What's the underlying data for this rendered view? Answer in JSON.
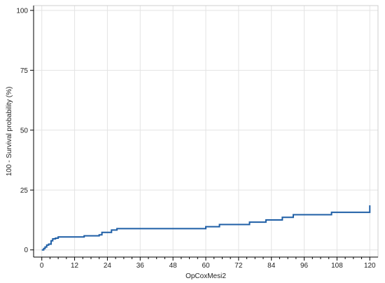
{
  "chart_data": {
    "type": "line",
    "step": true,
    "xlabel": "OpCoxMesi2",
    "ylabel": "100 - Survival probability (%)",
    "xlim": [
      -3,
      123
    ],
    "ylim": [
      -3,
      102
    ],
    "x_ticks": [
      0,
      12,
      24,
      36,
      48,
      60,
      72,
      84,
      96,
      108,
      120
    ],
    "y_ticks": [
      0,
      25,
      50,
      75,
      100
    ],
    "grid": true,
    "line_color": "#1f5fa6",
    "series": [
      {
        "x": [
          0,
          0.7,
          1.2,
          1.8,
          2.5,
          3.4,
          4.0,
          5.0,
          6.0,
          15.5,
          21.0,
          22.0,
          25.5,
          27.5,
          60.0,
          65.0,
          76.0,
          82.0,
          88.0,
          92.0,
          106.0,
          120.0,
          120.0
        ],
        "y": [
          0,
          0.6,
          1.2,
          2.0,
          2.4,
          3.8,
          4.6,
          4.9,
          5.4,
          5.9,
          6.3,
          7.3,
          8.3,
          8.9,
          9.7,
          10.6,
          11.6,
          12.5,
          13.6,
          14.7,
          15.7,
          15.7,
          18.6
        ]
      }
    ]
  }
}
